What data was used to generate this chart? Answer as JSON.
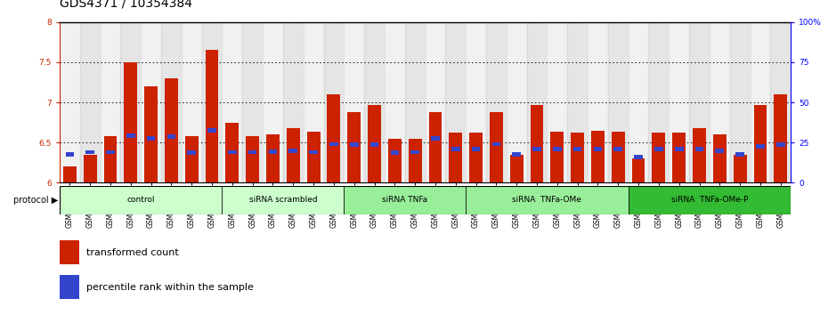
{
  "title": "GDS4371 / 10354384",
  "samples": [
    "GSM790907",
    "GSM790908",
    "GSM790909",
    "GSM790910",
    "GSM790911",
    "GSM790912",
    "GSM790913",
    "GSM790914",
    "GSM790915",
    "GSM790916",
    "GSM790917",
    "GSM790918",
    "GSM790919",
    "GSM790920",
    "GSM790921",
    "GSM790922",
    "GSM790923",
    "GSM790924",
    "GSM790925",
    "GSM790926",
    "GSM790927",
    "GSM790928",
    "GSM790929",
    "GSM790930",
    "GSM790931",
    "GSM790932",
    "GSM790933",
    "GSM790934",
    "GSM790935",
    "GSM790936",
    "GSM790937",
    "GSM790938",
    "GSM790939",
    "GSM790940",
    "GSM790941",
    "GSM790942"
  ],
  "red_values": [
    6.2,
    6.35,
    6.58,
    7.5,
    7.2,
    7.3,
    6.58,
    7.65,
    6.75,
    6.58,
    6.6,
    6.68,
    6.63,
    7.1,
    6.88,
    6.97,
    6.55,
    6.55,
    6.88,
    6.62,
    6.62,
    6.88,
    6.35,
    6.97,
    6.63,
    6.62,
    6.65,
    6.63,
    6.3,
    6.62,
    6.62,
    6.68,
    6.6,
    6.35,
    6.97,
    7.1
  ],
  "blue_values": [
    6.35,
    6.38,
    6.38,
    6.58,
    6.55,
    6.57,
    6.37,
    6.65,
    6.38,
    6.38,
    6.39,
    6.4,
    6.38,
    6.48,
    6.47,
    6.47,
    6.37,
    6.38,
    6.55,
    6.42,
    6.42,
    6.48,
    6.35,
    6.42,
    6.42,
    6.42,
    6.42,
    6.42,
    6.32,
    6.42,
    6.42,
    6.42,
    6.4,
    6.35,
    6.45,
    6.47
  ],
  "group_definitions": [
    {
      "label": "control",
      "start": 0,
      "end": 8,
      "color": "#ccffcc"
    },
    {
      "label": "siRNA scrambled",
      "start": 8,
      "end": 14,
      "color": "#ccffcc"
    },
    {
      "label": "siRNA TNFa",
      "start": 14,
      "end": 20,
      "color": "#99ee99"
    },
    {
      "label": "siRNA  TNFa-OMe",
      "start": 20,
      "end": 28,
      "color": "#99ee99"
    },
    {
      "label": "siRNA  TNFa-OMe-P",
      "start": 28,
      "end": 36,
      "color": "#33bb33"
    }
  ],
  "ymin": 6.0,
  "ymax": 8.0,
  "yticks": [
    6.0,
    6.5,
    7.0,
    7.5,
    8.0
  ],
  "ytick_labels": [
    "6",
    "6.5",
    "7",
    "7.5",
    "8"
  ],
  "grid_values": [
    6.5,
    7.0,
    7.5
  ],
  "right_yticks": [
    0,
    25,
    50,
    75,
    100
  ],
  "right_ytick_labels": [
    "0",
    "25",
    "50",
    "75",
    "100%"
  ],
  "bar_color": "#cc2200",
  "blue_color": "#3344cc",
  "title_fontsize": 10,
  "tick_fontsize": 6.5,
  "legend_fontsize": 8
}
